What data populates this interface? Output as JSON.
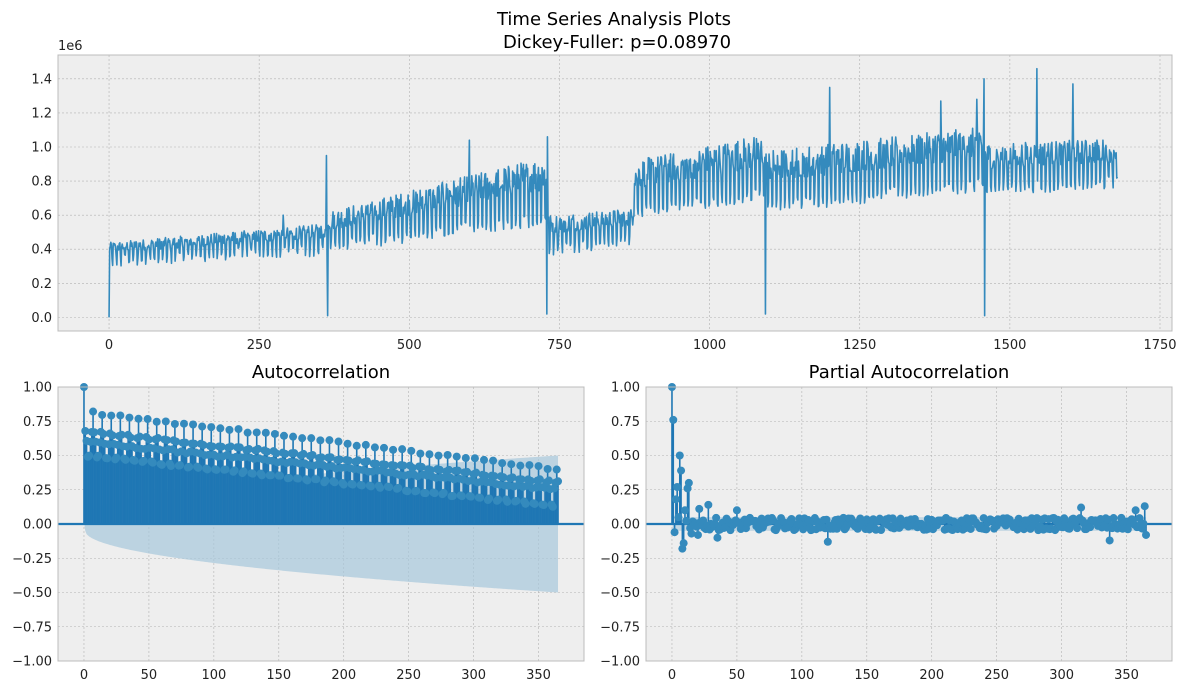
{
  "figure": {
    "title_line1": "Time Series Analysis Plots",
    "title_line2": "Dickey-Fuller: p=0.08970",
    "colors": {
      "axes_bg": "#eeeeee",
      "grid": "#b2b2b2",
      "line": "#348abd",
      "acf_fill": "#1f77b4",
      "ci_fill": "#a6c8dc",
      "frame": "#bcbcbc"
    }
  },
  "chart_data": [
    {
      "type": "line",
      "name": "time-series",
      "title": "",
      "offset_text": "1e6",
      "xlim": [
        -85,
        1770
      ],
      "ylim": [
        -0.08,
        1.54
      ],
      "xticks": [
        0,
        250,
        500,
        750,
        1000,
        1250,
        1500,
        1750
      ],
      "xtick_labels": [
        "0",
        "250",
        "500",
        "750",
        "1000",
        "1250",
        "1500",
        "1750"
      ],
      "yticks": [
        0.0,
        0.2,
        0.4,
        0.6,
        0.8,
        1.0,
        1.2,
        1.4
      ],
      "ytick_labels": [
        "0.0",
        "0.2",
        "0.4",
        "0.6",
        "0.8",
        "1.0",
        "1.2",
        "1.4"
      ],
      "grid": true,
      "n_points": 1680,
      "segments": [
        {
          "start": 0,
          "end": 364,
          "low_start": 0.33,
          "low_end": 0.4,
          "high_start": 0.44,
          "high_end": 0.55
        },
        {
          "start": 364,
          "end": 729,
          "low_start": 0.42,
          "low_end": 0.58,
          "high_start": 0.62,
          "high_end": 0.95
        },
        {
          "start": 729,
          "end": 873,
          "low_start": 0.4,
          "low_end": 0.46,
          "high_start": 0.6,
          "high_end": 0.64
        },
        {
          "start": 873,
          "end": 1093,
          "low_start": 0.62,
          "low_end": 0.72,
          "high_start": 0.92,
          "high_end": 1.08
        },
        {
          "start": 1093,
          "end": 1458,
          "low_start": 0.65,
          "low_end": 0.78,
          "high_start": 0.98,
          "high_end": 1.12
        },
        {
          "start": 1458,
          "end": 1680,
          "low_start": 0.75,
          "low_end": 0.8,
          "high_start": 1.02,
          "high_end": 1.05
        }
      ],
      "outliers": [
        {
          "x": 0,
          "y": 0.0
        },
        {
          "x": 364,
          "y": 0.01
        },
        {
          "x": 729,
          "y": 0.02
        },
        {
          "x": 1093,
          "y": 0.02
        },
        {
          "x": 1458,
          "y": 0.01
        },
        {
          "x": 1457,
          "y": 1.4
        },
        {
          "x": 1545,
          "y": 1.46
        },
        {
          "x": 1605,
          "y": 1.37
        },
        {
          "x": 1200,
          "y": 1.35
        },
        {
          "x": 1385,
          "y": 1.27
        },
        {
          "x": 1445,
          "y": 1.28
        },
        {
          "x": 730,
          "y": 1.06
        },
        {
          "x": 600,
          "y": 1.04
        },
        {
          "x": 362,
          "y": 0.95
        },
        {
          "x": 290,
          "y": 0.6
        }
      ]
    },
    {
      "type": "stem",
      "name": "acf",
      "title": "Autocorrelation",
      "xlim": [
        -20,
        385
      ],
      "ylim": [
        -1.0,
        1.0
      ],
      "xticks": [
        0,
        50,
        100,
        150,
        200,
        250,
        300,
        350
      ],
      "xtick_labels": [
        "0",
        "50",
        "100",
        "150",
        "200",
        "250",
        "300",
        "350"
      ],
      "yticks": [
        -1.0,
        -0.75,
        -0.5,
        -0.25,
        0.0,
        0.25,
        0.5,
        0.75,
        1.0
      ],
      "ytick_labels": [
        "−1.00",
        "−0.75",
        "−0.50",
        "−0.25",
        "0.00",
        "0.25",
        "0.50",
        "0.75",
        "1.00"
      ],
      "grid": true,
      "n_lags": 365,
      "lag0": 1.0,
      "base_start": 0.6,
      "base_end": 0.25,
      "weekly_peak_start": 0.82,
      "weekly_peak_end": 0.4,
      "min_start": 0.5,
      "min_end": 0.13,
      "ci_start": 0.05,
      "ci_end": 0.5
    },
    {
      "type": "stem",
      "name": "pacf",
      "title": "Partial Autocorrelation",
      "xlim": [
        -20,
        385
      ],
      "ylim": [
        -1.0,
        1.0
      ],
      "xticks": [
        0,
        50,
        100,
        150,
        200,
        250,
        300,
        350
      ],
      "xtick_labels": [
        "0",
        "50",
        "100",
        "150",
        "200",
        "250",
        "300",
        "350"
      ],
      "yticks": [
        -1.0,
        -0.75,
        -0.5,
        -0.25,
        0.0,
        0.25,
        0.5,
        0.75,
        1.0
      ],
      "ytick_labels": [
        "−1.00",
        "−0.75",
        "−0.50",
        "−0.25",
        "0.00",
        "0.25",
        "0.50",
        "0.75",
        "1.00"
      ],
      "grid": true,
      "n_lags": 365,
      "early_values": [
        {
          "x": 0,
          "y": 1.0
        },
        {
          "x": 1,
          "y": 0.76
        },
        {
          "x": 2,
          "y": -0.06
        },
        {
          "x": 3,
          "y": 0.18
        },
        {
          "x": 4,
          "y": 0.27
        },
        {
          "x": 5,
          "y": 0.05
        },
        {
          "x": 6,
          "y": 0.5
        },
        {
          "x": 7,
          "y": 0.39
        },
        {
          "x": 8,
          "y": -0.18
        },
        {
          "x": 9,
          "y": -0.14
        },
        {
          "x": 10,
          "y": 0.1
        },
        {
          "x": 12,
          "y": 0.26
        },
        {
          "x": 13,
          "y": 0.3
        },
        {
          "x": 14,
          "y": -0.03
        },
        {
          "x": 15,
          "y": -0.07
        },
        {
          "x": 20,
          "y": -0.08
        },
        {
          "x": 21,
          "y": 0.11
        },
        {
          "x": 28,
          "y": 0.14
        },
        {
          "x": 35,
          "y": -0.1
        }
      ],
      "notable_values": [
        {
          "x": 50,
          "y": 0.1
        },
        {
          "x": 120,
          "y": -0.13
        },
        {
          "x": 315,
          "y": 0.12
        },
        {
          "x": 337,
          "y": -0.12
        },
        {
          "x": 357,
          "y": 0.1
        },
        {
          "x": 364,
          "y": 0.13
        },
        {
          "x": 365,
          "y": -0.08
        }
      ]
    }
  ]
}
